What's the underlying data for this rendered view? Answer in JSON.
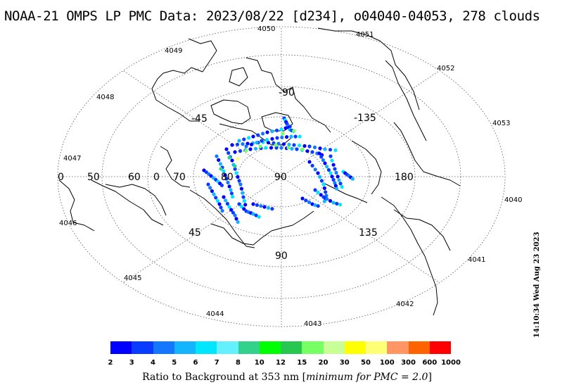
{
  "title": "NOAA-21 OMPS LP PMC Data: 2023/08/22 [d234], o04040-04053, 278 clouds",
  "orbit_labels": [
    "4040",
    "4041",
    "4042",
    "4043",
    "4044",
    "4045",
    "4046",
    "4047",
    "4048",
    "4049",
    "4050",
    "4051",
    "4052",
    "4053"
  ],
  "longitude_labels": [
    "0",
    "-45",
    "-90",
    "-135",
    "180",
    "135",
    "90",
    "45"
  ],
  "latitude_labels": [
    "50",
    "60",
    "70",
    "80",
    "90"
  ],
  "colorbar": {
    "ticks": [
      "2",
      "3",
      "4",
      "5",
      "6",
      "7",
      "8",
      "10",
      "12",
      "15",
      "20",
      "30",
      "50",
      "100",
      "300",
      "600",
      "1000"
    ],
    "colors": [
      "#0000ff",
      "#0a3cff",
      "#1478ff",
      "#14b4ff",
      "#00e6ff",
      "#64f0ff",
      "#32d28c",
      "#00ff00",
      "#28c850",
      "#78ff64",
      "#c8ff96",
      "#ffff00",
      "#ffff78",
      "#ff9664",
      "#ff6400",
      "#ff0000"
    ],
    "label_prefix": "Ratio to Background at 353 nm [",
    "label_italic": "minimum for PMC = 2.0",
    "label_suffix": "]"
  },
  "timestamp": "14:10:34 Wed Aug 23 2023",
  "clouds_count": 278
}
